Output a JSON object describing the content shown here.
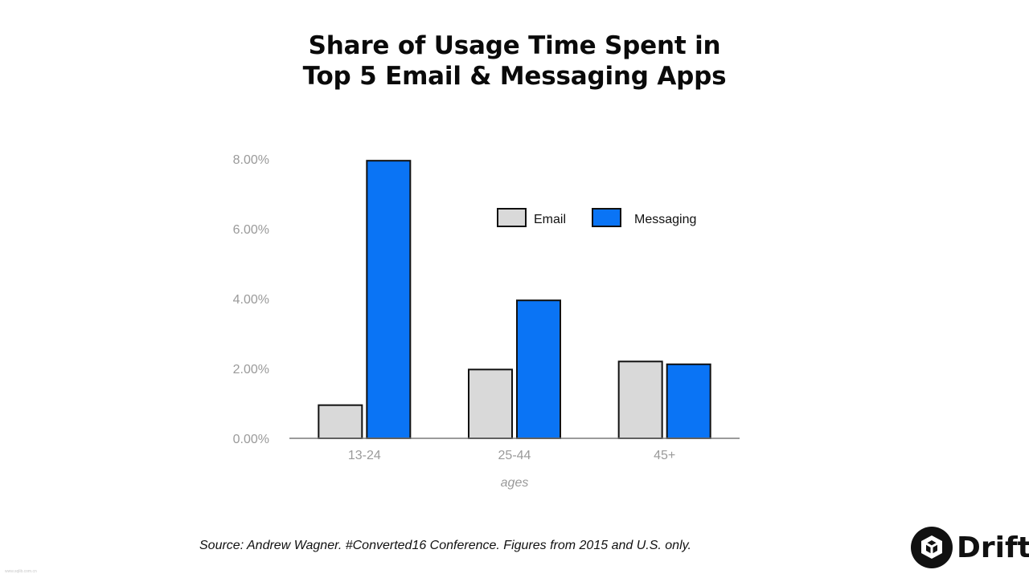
{
  "title_lines": [
    "Share of Usage Time Spent in",
    "Top 5 Email & Messaging Apps"
  ],
  "source": "Source: Andrew Wagner. #Converted16 Conference. Figures from 2015 and U.S. only.",
  "brand": {
    "name": "Drift"
  },
  "watermark": "www.sqlib.com.cn",
  "chart_data": {
    "type": "bar",
    "title": "Share of Usage Time Spent in Top 5 Email & Messaging Apps",
    "categories": [
      "13-24",
      "25-44",
      "45+"
    ],
    "series": [
      {
        "name": "Email",
        "values": [
          0.95,
          1.97,
          2.2
        ],
        "color": "#d9d9d9"
      },
      {
        "name": "Messaging",
        "values": [
          7.95,
          3.95,
          2.12
        ],
        "color": "#0a74f5"
      }
    ],
    "xlabel": "ages",
    "ylabel": "",
    "yticks": [
      "0.00%",
      "2.00%",
      "4.00%",
      "6.00%",
      "8.00%"
    ],
    "ylim": [
      0,
      8
    ],
    "grid": false,
    "legend_position": "top-right"
  }
}
